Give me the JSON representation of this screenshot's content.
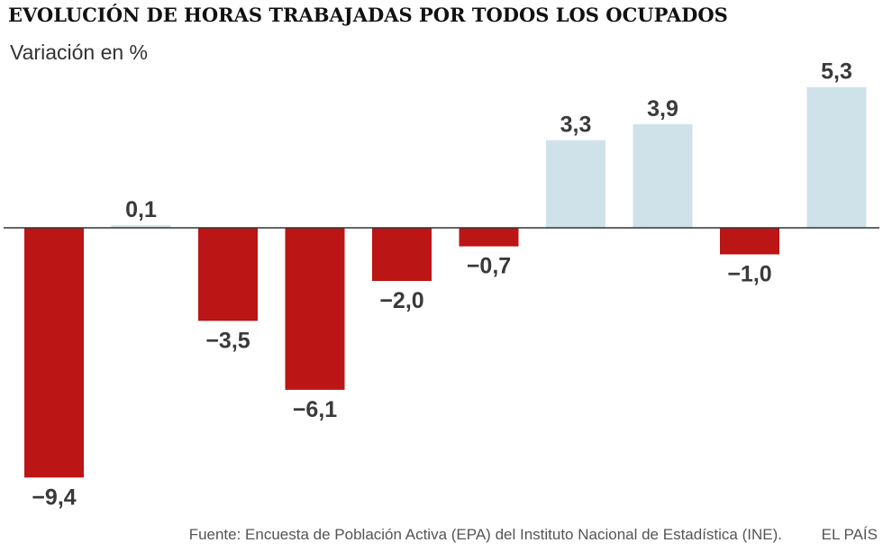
{
  "chart_data": {
    "type": "bar",
    "title": "EVOLUCIÓN DE HORAS TRABAJADAS POR TODOS LOS OCUPADOS",
    "subtitle": "Variación en %",
    "xlabel": "",
    "ylabel": "",
    "categories": [
      "",
      "",
      "",
      "",
      "",
      "",
      "",
      "",
      "",
      ""
    ],
    "values": [
      -9.4,
      0.1,
      -3.5,
      -6.1,
      -2.0,
      -0.7,
      3.3,
      3.9,
      -1.0,
      5.3
    ],
    "labels": [
      "−9,4",
      "0,1",
      "−3,5",
      "−6,1",
      "−2,0",
      "−0,7",
      "3,3",
      "3,9",
      "−1,0",
      "5,3"
    ],
    "ylim": [
      -9.4,
      5.3
    ],
    "grid": false,
    "legend": "none",
    "colors": {
      "positive": "#cfe2ea",
      "negative": "#bb1515",
      "axis": "#333333"
    }
  },
  "footer": {
    "source": "Fuente: Encuesta de Población Activa (EPA) del Instituto Nacional de Estadística (INE).",
    "brand": "EL PAÍS"
  }
}
